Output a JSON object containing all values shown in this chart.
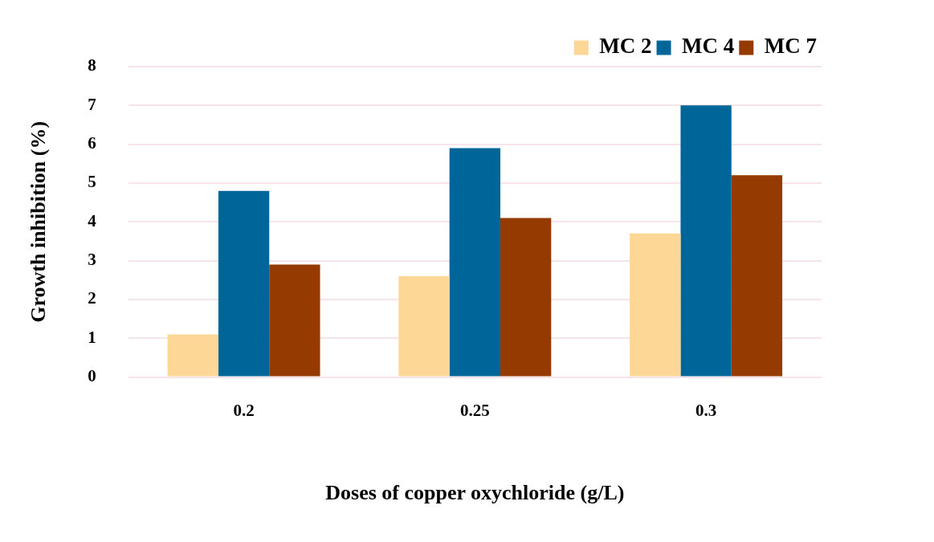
{
  "chart_data": {
    "type": "bar",
    "xlabel": "Doses of copper oxychloride (g/L)",
    "ylabel": "Growth inhibition (%)",
    "categories": [
      "0.2",
      "0.25",
      "0.3"
    ],
    "series": [
      {
        "name": "MC 2",
        "color": "#fdd795",
        "values": [
          1.1,
          2.6,
          3.7
        ]
      },
      {
        "name": "MC 4",
        "color": "#006699",
        "values": [
          4.8,
          5.9,
          7.0
        ]
      },
      {
        "name": "MC 7",
        "color": "#953a00",
        "values": [
          2.9,
          4.1,
          5.2
        ]
      }
    ],
    "ylim": [
      0,
      8
    ],
    "yticks": [
      0,
      1,
      2,
      3,
      4,
      5,
      6,
      7,
      8
    ],
    "grid": "y",
    "legend": "top right"
  }
}
